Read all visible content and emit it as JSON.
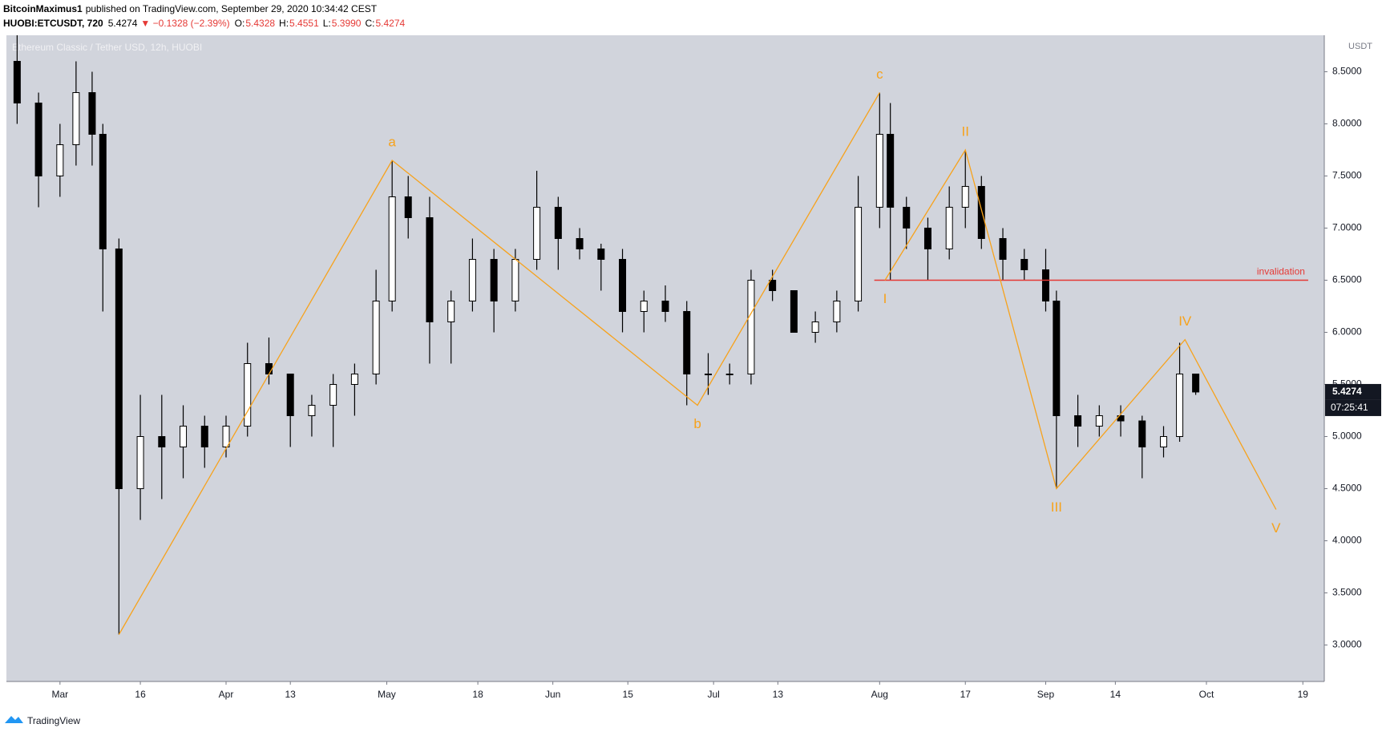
{
  "header": {
    "author": "BitcoinMaximus1",
    "published": "published on TradingView.com, September 29, 2020 10:34:42 CEST",
    "symbol": "HUOBI:ETCUSDT, 720",
    "last": "5.4274",
    "change": "▼ −0.1328 (−2.39%)",
    "ohlc": [
      {
        "key": "O:",
        "value": "5.4328"
      },
      {
        "key": "H:",
        "value": "5.4551"
      },
      {
        "key": "L:",
        "value": "5.3990"
      },
      {
        "key": "C:",
        "value": "5.4274"
      }
    ]
  },
  "footer": {
    "brand": "TradingView"
  },
  "chart_data": {
    "type": "candlestick",
    "watermark": "Ethereum Classic / Tether USD, 12h, HUOBI",
    "currency": "USDT",
    "countdown": "07:25:41",
    "background": "#d1d4dc",
    "up_color": "#ffffff",
    "down_color": "#000000",
    "wick_color": "#000000",
    "xlim": [
      "2020-02-20",
      "2020-10-23"
    ],
    "xticks": [
      {
        "value": "2020-03-01",
        "label": "Mar"
      },
      {
        "value": "2020-03-16",
        "label": "16"
      },
      {
        "value": "2020-04-01",
        "label": "Apr"
      },
      {
        "value": "2020-04-13",
        "label": "13"
      },
      {
        "value": "2020-05-01",
        "label": "May"
      },
      {
        "value": "2020-05-18",
        "label": "18"
      },
      {
        "value": "2020-06-01",
        "label": "Jun"
      },
      {
        "value": "2020-06-15",
        "label": "15"
      },
      {
        "value": "2020-07-01",
        "label": "Jul"
      },
      {
        "value": "2020-07-13",
        "label": "13"
      },
      {
        "value": "2020-08-01",
        "label": "Aug"
      },
      {
        "value": "2020-08-17",
        "label": "17"
      },
      {
        "value": "2020-09-01",
        "label": "Sep"
      },
      {
        "value": "2020-09-14",
        "label": "14"
      },
      {
        "value": "2020-10-01",
        "label": "Oct"
      },
      {
        "value": "2020-10-19",
        "label": "19"
      }
    ],
    "ylim": [
      2.65,
      8.85
    ],
    "yticks": [
      {
        "value": 3,
        "label": "3.0000"
      },
      {
        "value": 3.5,
        "label": "3.5000"
      },
      {
        "value": 4,
        "label": "4.0000"
      },
      {
        "value": 4.5,
        "label": "4.5000"
      },
      {
        "value": 5,
        "label": "5.0000"
      },
      {
        "value": 5.5,
        "label": "5.5000"
      },
      {
        "value": 6,
        "label": "6.0000"
      },
      {
        "value": 6.5,
        "label": "6.5000"
      },
      {
        "value": 7,
        "label": "7.0000"
      },
      {
        "value": 7.5,
        "label": "7.5000"
      },
      {
        "value": 8,
        "label": "8.0000"
      },
      {
        "value": 8.5,
        "label": "8.5000"
      }
    ],
    "x": [
      "2020-02-22",
      "2020-02-26",
      "2020-03-01",
      "2020-03-04",
      "2020-03-07",
      "2020-03-09",
      "2020-03-12",
      "2020-03-16",
      "2020-03-20",
      "2020-03-24",
      "2020-03-28",
      "2020-04-01",
      "2020-04-05",
      "2020-04-09",
      "2020-04-13",
      "2020-04-17",
      "2020-04-21",
      "2020-04-25",
      "2020-04-29",
      "2020-05-02",
      "2020-05-05",
      "2020-05-09",
      "2020-05-13",
      "2020-05-17",
      "2020-05-21",
      "2020-05-25",
      "2020-05-29",
      "2020-06-02",
      "2020-06-06",
      "2020-06-10",
      "2020-06-14",
      "2020-06-18",
      "2020-06-22",
      "2020-06-26",
      "2020-06-30",
      "2020-07-04",
      "2020-07-08",
      "2020-07-12",
      "2020-07-16",
      "2020-07-20",
      "2020-07-24",
      "2020-07-28",
      "2020-08-01",
      "2020-08-03",
      "2020-08-06",
      "2020-08-10",
      "2020-08-14",
      "2020-08-17",
      "2020-08-20",
      "2020-08-24",
      "2020-08-28",
      "2020-09-01",
      "2020-09-03",
      "2020-09-07",
      "2020-09-11",
      "2020-09-15",
      "2020-09-19",
      "2020-09-23",
      "2020-09-26",
      "2020-09-29"
    ],
    "ohlc": [
      [
        8.6,
        8.85,
        8.0,
        8.2
      ],
      [
        8.2,
        8.3,
        7.2,
        7.5
      ],
      [
        7.5,
        8.0,
        7.3,
        7.8
      ],
      [
        7.8,
        8.6,
        7.6,
        8.3
      ],
      [
        8.3,
        8.5,
        7.6,
        7.9
      ],
      [
        7.9,
        8.0,
        6.2,
        6.8
      ],
      [
        6.8,
        6.9,
        3.1,
        4.5
      ],
      [
        4.5,
        5.4,
        4.2,
        5.0
      ],
      [
        5.0,
        5.4,
        4.4,
        4.9
      ],
      [
        4.9,
        5.3,
        4.6,
        5.1
      ],
      [
        5.1,
        5.2,
        4.7,
        4.9
      ],
      [
        4.9,
        5.2,
        4.8,
        5.1
      ],
      [
        5.1,
        5.9,
        5.0,
        5.7
      ],
      [
        5.7,
        5.95,
        5.5,
        5.6
      ],
      [
        5.6,
        5.6,
        4.9,
        5.2
      ],
      [
        5.2,
        5.4,
        5.0,
        5.3
      ],
      [
        5.3,
        5.6,
        4.9,
        5.5
      ],
      [
        5.5,
        5.7,
        5.2,
        5.6
      ],
      [
        5.6,
        6.6,
        5.5,
        6.3
      ],
      [
        6.3,
        7.65,
        6.2,
        7.3
      ],
      [
        7.3,
        7.5,
        6.9,
        7.1
      ],
      [
        7.1,
        7.3,
        5.7,
        6.1
      ],
      [
        6.1,
        6.4,
        5.7,
        6.3
      ],
      [
        6.3,
        6.9,
        6.2,
        6.7
      ],
      [
        6.7,
        6.8,
        6.0,
        6.3
      ],
      [
        6.3,
        6.8,
        6.2,
        6.7
      ],
      [
        6.7,
        7.55,
        6.6,
        7.2
      ],
      [
        7.2,
        7.3,
        6.6,
        6.9
      ],
      [
        6.9,
        7.0,
        6.7,
        6.8
      ],
      [
        6.8,
        6.85,
        6.4,
        6.7
      ],
      [
        6.7,
        6.8,
        6.0,
        6.2
      ],
      [
        6.2,
        6.4,
        6.0,
        6.3
      ],
      [
        6.3,
        6.45,
        6.1,
        6.2
      ],
      [
        6.2,
        6.3,
        5.3,
        5.6
      ],
      [
        5.6,
        5.8,
        5.4,
        5.6
      ],
      [
        5.6,
        5.7,
        5.5,
        5.6
      ],
      [
        5.6,
        6.6,
        5.5,
        6.5
      ],
      [
        6.5,
        6.6,
        6.3,
        6.4
      ],
      [
        6.4,
        6.4,
        6.0,
        6.0
      ],
      [
        6.0,
        6.2,
        5.9,
        6.1
      ],
      [
        6.1,
        6.4,
        6.0,
        6.3
      ],
      [
        6.3,
        7.5,
        6.2,
        7.2
      ],
      [
        7.2,
        8.3,
        7.0,
        7.9
      ],
      [
        7.9,
        8.2,
        6.5,
        7.2
      ],
      [
        7.2,
        7.3,
        6.8,
        7.0
      ],
      [
        7.0,
        7.1,
        6.5,
        6.8
      ],
      [
        6.8,
        7.4,
        6.7,
        7.2
      ],
      [
        7.2,
        7.75,
        7.0,
        7.4
      ],
      [
        7.4,
        7.5,
        6.8,
        6.9
      ],
      [
        6.9,
        7.0,
        6.5,
        6.7
      ],
      [
        6.7,
        6.8,
        6.5,
        6.6
      ],
      [
        6.6,
        6.8,
        6.2,
        6.3
      ],
      [
        6.3,
        6.4,
        4.5,
        5.2
      ],
      [
        5.2,
        5.4,
        4.9,
        5.1
      ],
      [
        5.1,
        5.3,
        5.0,
        5.2
      ],
      [
        5.2,
        5.3,
        5.0,
        5.15
      ],
      [
        5.15,
        5.2,
        4.6,
        4.9
      ],
      [
        4.9,
        5.1,
        4.8,
        5.0
      ],
      [
        5.0,
        5.9,
        4.95,
        5.6
      ],
      [
        5.6,
        5.6,
        5.4,
        5.4274
      ]
    ],
    "waves": [
      {
        "color": "#f7a21b",
        "points": [
          {
            "x": "2020-03-12",
            "y": 3.1,
            "label": null
          },
          {
            "x": "2020-05-02",
            "y": 7.65,
            "label": "a"
          },
          {
            "x": "2020-06-28",
            "y": 5.3,
            "label": "b"
          },
          {
            "x": "2020-08-01",
            "y": 8.3,
            "label": "c"
          }
        ]
      },
      {
        "color": "#f7a21b",
        "points": [
          {
            "x": "2020-08-02",
            "y": 6.5,
            "label": "I"
          },
          {
            "x": "2020-08-17",
            "y": 7.75,
            "label": "II"
          },
          {
            "x": "2020-09-03",
            "y": 4.5,
            "label": "III"
          },
          {
            "x": "2020-09-27",
            "y": 5.93,
            "label": "IV"
          },
          {
            "x": "2020-10-14",
            "y": 4.3,
            "label": "V"
          }
        ]
      }
    ],
    "hline": {
      "value": 6.5,
      "label": "invalidation",
      "color": "#e53935",
      "x": [
        "2020-07-31",
        "2020-10-20"
      ]
    }
  }
}
